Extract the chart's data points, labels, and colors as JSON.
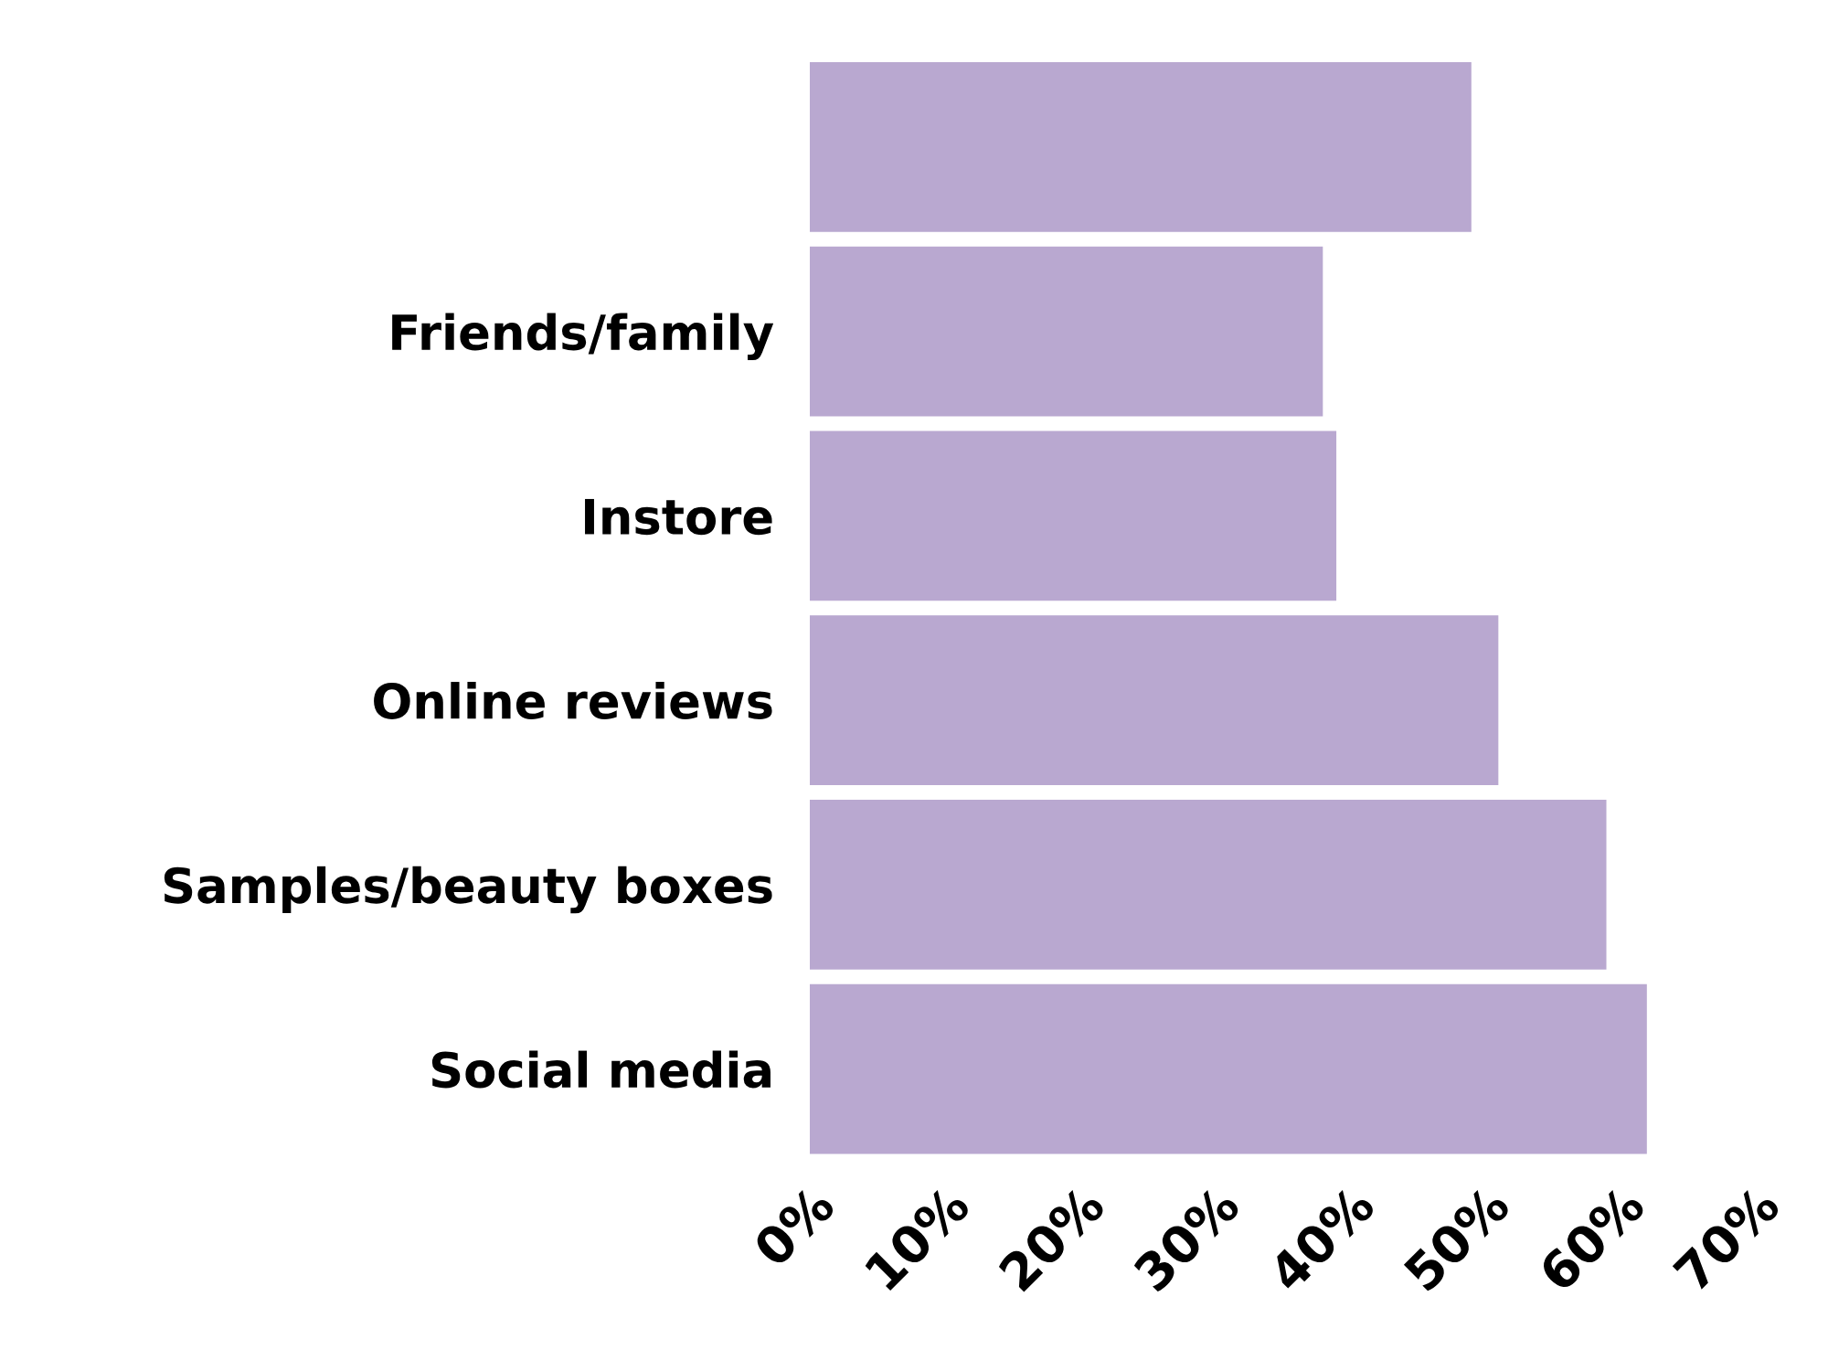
{
  "chart_data": {
    "type": "bar",
    "orientation": "horizontal",
    "categories": [
      null,
      "Friends/family",
      "Instore",
      "Online reviews",
      "Samples/beauty boxes",
      "Social media"
    ],
    "values": [
      49,
      38,
      39,
      51,
      59,
      62
    ],
    "color": "#b9a8d0",
    "xlim": [
      0,
      70
    ],
    "xticks": [
      {
        "value": 0,
        "label": "0%"
      },
      {
        "value": 10,
        "label": "10%"
      },
      {
        "value": 20,
        "label": "20%"
      },
      {
        "value": 30,
        "label": "30%"
      },
      {
        "value": 40,
        "label": "40%"
      },
      {
        "value": 50,
        "label": "50%"
      },
      {
        "value": 60,
        "label": "60%"
      },
      {
        "value": 70,
        "label": "70%"
      }
    ],
    "grid": false,
    "legend": false
  }
}
